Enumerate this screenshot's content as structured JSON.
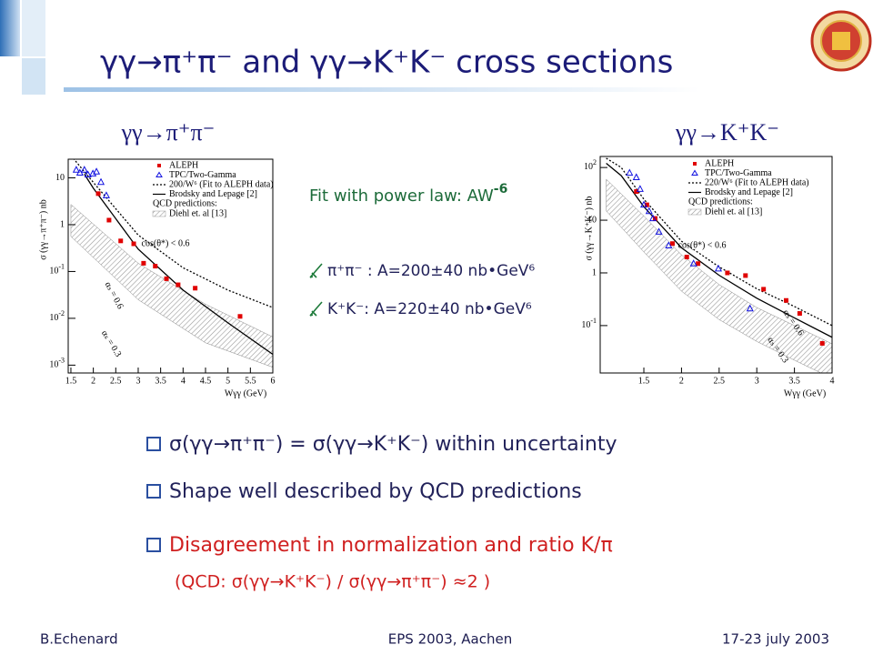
{
  "title": "γγ→π⁺π⁻ and γγ→K⁺K⁻ cross sections",
  "subheadings": [
    "γγ→π⁺π⁻",
    "γγ→K⁺K⁻"
  ],
  "fit": {
    "text": "Fit with power law: AW",
    "sup": "-6",
    "items": [
      "π⁺π⁻ : A=200±40 nb•GeV⁶",
      "K⁺K⁻: A=220±40 nb•GeV⁶"
    ]
  },
  "bullets": [
    "σ(γγ→π⁺π⁻) = σ(γγ→K⁺K⁻) within uncertainty",
    "Shape well described by QCD predictions",
    "Disagreement in normalization and ratio K/π"
  ],
  "note": "(QCD: σ(γγ→K⁺K⁻) / σ(γγ→π⁺π⁻) ≈2 )",
  "footer": {
    "left": "B.Echenard",
    "center": "EPS 2003, Aachen",
    "right": "17-23 july 2003"
  },
  "chart_data": [
    {
      "type": "scatter",
      "ylabel": "σ (γγ→π⁺π⁻) nb",
      "xlabel": "Wγγ (GeV)",
      "log_y": true,
      "xlim": [
        1.44,
        6
      ],
      "ylim": [
        0.00068,
        25
      ],
      "xticks": [
        1.5,
        2,
        2.5,
        3,
        3.5,
        4,
        4.5,
        5,
        5.5,
        6
      ],
      "yticks": [
        10,
        1,
        {
          "value": 0.1,
          "label": "10",
          "sup": "-1"
        },
        {
          "value": 0.01,
          "label": "10",
          "sup": "-2"
        },
        {
          "value": 0.001,
          "label": "10",
          "sup": "-3"
        }
      ],
      "legend_heading": "QCD predictions:",
      "annotations": [
        "cos(θ*) < 0.6",
        "αₛ = 0.6",
        "αₛ = 0.3"
      ],
      "series": [
        {
          "name": "ALEPH",
          "kind": "points",
          "marker": "square",
          "color": "#e00000",
          "x": [
            2.11,
            2.35,
            2.61,
            2.9,
            3.12,
            3.38,
            3.63,
            3.89,
            4.27,
            5.27
          ],
          "values": [
            4.6,
            1.25,
            0.45,
            0.39,
            0.15,
            0.13,
            0.07,
            0.052,
            0.044,
            0.011
          ]
        },
        {
          "name": "TPC/Two-Gamma",
          "kind": "points",
          "marker": "triangle",
          "color": "#1010e0",
          "x": [
            1.62,
            1.7,
            1.8,
            1.88,
            1.99,
            2.07,
            2.17,
            2.29
          ],
          "values": [
            14.8,
            12.8,
            14.8,
            11.7,
            12.3,
            13.5,
            8.1,
            4.2
          ]
        },
        {
          "name": "200/W⁶ (Fit to ALEPH data)",
          "kind": "line",
          "dashed": true,
          "color": "#000000",
          "x": [
            1.5,
            2,
            3,
            4,
            5,
            6
          ],
          "values": [
            30,
            8,
            0.6,
            0.12,
            0.04,
            0.017
          ]
        },
        {
          "name": "Brodsky and Lepage [2]",
          "kind": "line",
          "dashed": false,
          "color": "#000000",
          "x": [
            1.8,
            2,
            3,
            4,
            5,
            6
          ],
          "values": [
            12,
            6,
            0.3,
            0.04,
            0.008,
            0.0017
          ]
        },
        {
          "name": "Diehl et. al [13]",
          "kind": "band",
          "color": "#888888",
          "x": [
            1.5,
            3,
            4.5,
            6
          ],
          "values": [
            2.7,
            0.15,
            0.02,
            0.004
          ],
          "lower": [
            0.56,
            0.025,
            0.003,
            0.0009
          ]
        }
      ]
    },
    {
      "type": "scatter",
      "ylabel": "σ (γγ→K⁺K⁻) nb",
      "xlabel": "Wγγ (GeV)",
      "log_y": true,
      "xlim": [
        0.92,
        4
      ],
      "ylim": [
        0.0126,
        162
      ],
      "xticks": [
        1.5,
        2,
        2.5,
        3,
        3.5,
        4
      ],
      "yticks": [
        {
          "value": 100,
          "label": "10",
          "sup": "2"
        },
        10,
        1,
        {
          "value": 0.1,
          "label": "10",
          "sup": "-1"
        }
      ],
      "legend_heading": "QCD predictions:",
      "annotations": [
        "cos(θ*) < 0.6",
        "αₛ = 0.6",
        "αₛ = 0.3"
      ],
      "series": [
        {
          "name": "ALEPH",
          "kind": "points",
          "marker": "square",
          "color": "#e00000",
          "x": [
            1.4,
            1.54,
            1.65,
            1.88,
            2.07,
            2.22,
            2.61,
            2.85,
            3.09,
            3.39,
            3.57,
            3.87
          ],
          "values": [
            35,
            19.6,
            10.8,
            3.6,
            2.0,
            1.5,
            1.0,
            0.89,
            0.49,
            0.3,
            0.17,
            0.046
          ]
        },
        {
          "name": "TPC/Two-Gamma",
          "kind": "points",
          "marker": "triangle",
          "color": "#1010e0",
          "x": [
            1.31,
            1.4,
            1.45,
            1.5,
            1.57,
            1.62,
            1.7,
            1.83,
            2.16,
            2.49,
            2.91
          ],
          "values": [
            79,
            65,
            39,
            19.6,
            14.8,
            10.8,
            6.0,
            3.3,
            1.5,
            1.2,
            0.21
          ]
        },
        {
          "name": "220/W⁶ (Fit to ALEPH data)",
          "kind": "line",
          "dashed": true,
          "color": "#000000",
          "x": [
            1.0,
            1.2,
            1.5,
            2,
            2.5,
            3,
            3.5,
            4
          ],
          "values": [
            150,
            100,
            25,
            4,
            1.3,
            0.5,
            0.23,
            0.1
          ]
        },
        {
          "name": "Brodsky and Lepage [2]",
          "kind": "line",
          "dashed": false,
          "color": "#000000",
          "x": [
            1.0,
            1.2,
            1.5,
            2,
            2.5,
            3,
            3.5,
            4
          ],
          "values": [
            120,
            70,
            18,
            3,
            0.9,
            0.33,
            0.14,
            0.06
          ]
        },
        {
          "name": "Diehl et. al [13]",
          "kind": "band",
          "color": "#888888",
          "x": [
            1.0,
            1.5,
            2,
            2.5,
            3,
            3.5,
            4
          ],
          "values": [
            60,
            12,
            2.2,
            0.6,
            0.22,
            0.1,
            0.045
          ],
          "lower": [
            15,
            2.5,
            0.45,
            0.13,
            0.05,
            0.022,
            0.01
          ]
        }
      ]
    }
  ]
}
